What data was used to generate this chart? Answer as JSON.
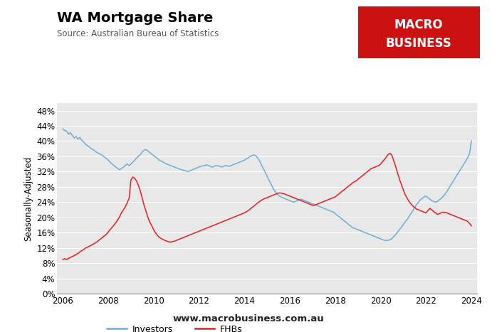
{
  "title": "WA Mortgage Share",
  "subtitle": "Source: Australian Bureau of Statistics",
  "ylabel": "Seasonally-Adjusted",
  "ylim": [
    0,
    0.5
  ],
  "yticks": [
    0.0,
    0.04,
    0.08,
    0.12,
    0.16,
    0.2,
    0.24,
    0.28,
    0.32,
    0.36,
    0.4,
    0.44,
    0.48
  ],
  "xlim": [
    2005.75,
    2024.25
  ],
  "xticks": [
    2006,
    2008,
    2010,
    2012,
    2014,
    2016,
    2018,
    2020,
    2022,
    2024
  ],
  "background_color": "#f2f2f2",
  "plot_bg_color": "#e8e8e8",
  "investors_color": "#6baed6",
  "fhbs_color": "#e81c1c",
  "legend_investors": "Investors",
  "legend_fhbs": "FHBs",
  "website": "www.macrobusiness.com.au",
  "investors": [
    [
      2006.0,
      0.432
    ],
    [
      2006.08,
      0.428
    ],
    [
      2006.17,
      0.426
    ],
    [
      2006.25,
      0.418
    ],
    [
      2006.33,
      0.422
    ],
    [
      2006.42,
      0.415
    ],
    [
      2006.5,
      0.408
    ],
    [
      2006.58,
      0.412
    ],
    [
      2006.67,
      0.405
    ],
    [
      2006.75,
      0.41
    ],
    [
      2006.83,
      0.402
    ],
    [
      2006.92,
      0.398
    ],
    [
      2007.0,
      0.392
    ],
    [
      2007.08,
      0.388
    ],
    [
      2007.17,
      0.385
    ],
    [
      2007.25,
      0.38
    ],
    [
      2007.33,
      0.378
    ],
    [
      2007.42,
      0.374
    ],
    [
      2007.5,
      0.37
    ],
    [
      2007.58,
      0.368
    ],
    [
      2007.67,
      0.365
    ],
    [
      2007.75,
      0.362
    ],
    [
      2007.83,
      0.358
    ],
    [
      2007.92,
      0.355
    ],
    [
      2008.0,
      0.35
    ],
    [
      2008.08,
      0.345
    ],
    [
      2008.17,
      0.34
    ],
    [
      2008.25,
      0.336
    ],
    [
      2008.33,
      0.332
    ],
    [
      2008.42,
      0.328
    ],
    [
      2008.5,
      0.325
    ],
    [
      2008.58,
      0.328
    ],
    [
      2008.67,
      0.332
    ],
    [
      2008.75,
      0.336
    ],
    [
      2008.83,
      0.34
    ],
    [
      2008.92,
      0.336
    ],
    [
      2009.0,
      0.34
    ],
    [
      2009.08,
      0.345
    ],
    [
      2009.17,
      0.35
    ],
    [
      2009.25,
      0.356
    ],
    [
      2009.33,
      0.36
    ],
    [
      2009.42,
      0.365
    ],
    [
      2009.5,
      0.372
    ],
    [
      2009.58,
      0.376
    ],
    [
      2009.67,
      0.378
    ],
    [
      2009.75,
      0.374
    ],
    [
      2009.83,
      0.37
    ],
    [
      2009.92,
      0.366
    ],
    [
      2010.0,
      0.362
    ],
    [
      2010.08,
      0.358
    ],
    [
      2010.17,
      0.355
    ],
    [
      2010.25,
      0.35
    ],
    [
      2010.33,
      0.348
    ],
    [
      2010.42,
      0.345
    ],
    [
      2010.5,
      0.342
    ],
    [
      2010.58,
      0.34
    ],
    [
      2010.67,
      0.338
    ],
    [
      2010.75,
      0.336
    ],
    [
      2010.83,
      0.334
    ],
    [
      2010.92,
      0.332
    ],
    [
      2011.0,
      0.33
    ],
    [
      2011.08,
      0.328
    ],
    [
      2011.17,
      0.326
    ],
    [
      2011.25,
      0.325
    ],
    [
      2011.33,
      0.323
    ],
    [
      2011.42,
      0.322
    ],
    [
      2011.5,
      0.32
    ],
    [
      2011.58,
      0.322
    ],
    [
      2011.67,
      0.324
    ],
    [
      2011.75,
      0.326
    ],
    [
      2011.83,
      0.328
    ],
    [
      2011.92,
      0.33
    ],
    [
      2012.0,
      0.332
    ],
    [
      2012.08,
      0.334
    ],
    [
      2012.17,
      0.335
    ],
    [
      2012.25,
      0.336
    ],
    [
      2012.33,
      0.338
    ],
    [
      2012.42,
      0.336
    ],
    [
      2012.5,
      0.334
    ],
    [
      2012.58,
      0.332
    ],
    [
      2012.67,
      0.334
    ],
    [
      2012.75,
      0.336
    ],
    [
      2012.83,
      0.335
    ],
    [
      2012.92,
      0.334
    ],
    [
      2013.0,
      0.332
    ],
    [
      2013.08,
      0.334
    ],
    [
      2013.17,
      0.336
    ],
    [
      2013.25,
      0.335
    ],
    [
      2013.33,
      0.334
    ],
    [
      2013.42,
      0.336
    ],
    [
      2013.5,
      0.338
    ],
    [
      2013.58,
      0.34
    ],
    [
      2013.67,
      0.342
    ],
    [
      2013.75,
      0.344
    ],
    [
      2013.83,
      0.346
    ],
    [
      2013.92,
      0.348
    ],
    [
      2014.0,
      0.35
    ],
    [
      2014.08,
      0.354
    ],
    [
      2014.17,
      0.356
    ],
    [
      2014.25,
      0.36
    ],
    [
      2014.33,
      0.362
    ],
    [
      2014.42,
      0.364
    ],
    [
      2014.5,
      0.362
    ],
    [
      2014.58,
      0.356
    ],
    [
      2014.67,
      0.348
    ],
    [
      2014.75,
      0.338
    ],
    [
      2014.83,
      0.328
    ],
    [
      2014.92,
      0.318
    ],
    [
      2015.0,
      0.308
    ],
    [
      2015.08,
      0.298
    ],
    [
      2015.17,
      0.288
    ],
    [
      2015.25,
      0.278
    ],
    [
      2015.33,
      0.27
    ],
    [
      2015.42,
      0.262
    ],
    [
      2015.5,
      0.258
    ],
    [
      2015.58,
      0.255
    ],
    [
      2015.67,
      0.252
    ],
    [
      2015.75,
      0.25
    ],
    [
      2015.83,
      0.248
    ],
    [
      2015.92,
      0.246
    ],
    [
      2016.0,
      0.244
    ],
    [
      2016.08,
      0.242
    ],
    [
      2016.17,
      0.24
    ],
    [
      2016.25,
      0.242
    ],
    [
      2016.33,
      0.244
    ],
    [
      2016.42,
      0.246
    ],
    [
      2016.5,
      0.248
    ],
    [
      2016.58,
      0.246
    ],
    [
      2016.67,
      0.244
    ],
    [
      2016.75,
      0.242
    ],
    [
      2016.83,
      0.24
    ],
    [
      2016.92,
      0.238
    ],
    [
      2017.0,
      0.236
    ],
    [
      2017.08,
      0.234
    ],
    [
      2017.17,
      0.232
    ],
    [
      2017.25,
      0.23
    ],
    [
      2017.33,
      0.228
    ],
    [
      2017.42,
      0.226
    ],
    [
      2017.5,
      0.224
    ],
    [
      2017.58,
      0.222
    ],
    [
      2017.67,
      0.22
    ],
    [
      2017.75,
      0.218
    ],
    [
      2017.83,
      0.216
    ],
    [
      2017.92,
      0.214
    ],
    [
      2018.0,
      0.21
    ],
    [
      2018.08,
      0.206
    ],
    [
      2018.17,
      0.202
    ],
    [
      2018.25,
      0.198
    ],
    [
      2018.33,
      0.194
    ],
    [
      2018.42,
      0.19
    ],
    [
      2018.5,
      0.186
    ],
    [
      2018.58,
      0.182
    ],
    [
      2018.67,
      0.178
    ],
    [
      2018.75,
      0.174
    ],
    [
      2018.83,
      0.172
    ],
    [
      2018.92,
      0.17
    ],
    [
      2019.0,
      0.168
    ],
    [
      2019.08,
      0.166
    ],
    [
      2019.17,
      0.164
    ],
    [
      2019.25,
      0.162
    ],
    [
      2019.33,
      0.16
    ],
    [
      2019.42,
      0.158
    ],
    [
      2019.5,
      0.156
    ],
    [
      2019.58,
      0.154
    ],
    [
      2019.67,
      0.152
    ],
    [
      2019.75,
      0.15
    ],
    [
      2019.83,
      0.148
    ],
    [
      2019.92,
      0.146
    ],
    [
      2020.0,
      0.144
    ],
    [
      2020.08,
      0.142
    ],
    [
      2020.17,
      0.14
    ],
    [
      2020.25,
      0.14
    ],
    [
      2020.33,
      0.14
    ],
    [
      2020.42,
      0.142
    ],
    [
      2020.5,
      0.145
    ],
    [
      2020.58,
      0.15
    ],
    [
      2020.67,
      0.156
    ],
    [
      2020.75,
      0.162
    ],
    [
      2020.83,
      0.168
    ],
    [
      2020.92,
      0.175
    ],
    [
      2021.0,
      0.182
    ],
    [
      2021.08,
      0.188
    ],
    [
      2021.17,
      0.195
    ],
    [
      2021.25,
      0.202
    ],
    [
      2021.33,
      0.21
    ],
    [
      2021.42,
      0.218
    ],
    [
      2021.5,
      0.226
    ],
    [
      2021.58,
      0.234
    ],
    [
      2021.67,
      0.24
    ],
    [
      2021.75,
      0.246
    ],
    [
      2021.83,
      0.25
    ],
    [
      2021.92,
      0.254
    ],
    [
      2022.0,
      0.256
    ],
    [
      2022.08,
      0.252
    ],
    [
      2022.17,
      0.248
    ],
    [
      2022.25,
      0.244
    ],
    [
      2022.33,
      0.242
    ],
    [
      2022.42,
      0.24
    ],
    [
      2022.5,
      0.242
    ],
    [
      2022.58,
      0.246
    ],
    [
      2022.67,
      0.25
    ],
    [
      2022.75,
      0.255
    ],
    [
      2022.83,
      0.26
    ],
    [
      2022.92,
      0.268
    ],
    [
      2023.0,
      0.276
    ],
    [
      2023.08,
      0.284
    ],
    [
      2023.17,
      0.292
    ],
    [
      2023.25,
      0.3
    ],
    [
      2023.33,
      0.308
    ],
    [
      2023.42,
      0.316
    ],
    [
      2023.5,
      0.324
    ],
    [
      2023.58,
      0.332
    ],
    [
      2023.67,
      0.34
    ],
    [
      2023.75,
      0.348
    ],
    [
      2023.83,
      0.356
    ],
    [
      2023.92,
      0.368
    ],
    [
      2024.0,
      0.4
    ]
  ],
  "fhbs": [
    [
      2006.0,
      0.09
    ],
    [
      2006.08,
      0.092
    ],
    [
      2006.17,
      0.09
    ],
    [
      2006.25,
      0.093
    ],
    [
      2006.33,
      0.095
    ],
    [
      2006.42,
      0.098
    ],
    [
      2006.5,
      0.1
    ],
    [
      2006.58,
      0.103
    ],
    [
      2006.67,
      0.106
    ],
    [
      2006.75,
      0.11
    ],
    [
      2006.83,
      0.113
    ],
    [
      2006.92,
      0.116
    ],
    [
      2007.0,
      0.12
    ],
    [
      2007.08,
      0.122
    ],
    [
      2007.17,
      0.125
    ],
    [
      2007.25,
      0.127
    ],
    [
      2007.33,
      0.13
    ],
    [
      2007.42,
      0.133
    ],
    [
      2007.5,
      0.136
    ],
    [
      2007.58,
      0.14
    ],
    [
      2007.67,
      0.144
    ],
    [
      2007.75,
      0.148
    ],
    [
      2007.83,
      0.152
    ],
    [
      2007.92,
      0.156
    ],
    [
      2008.0,
      0.162
    ],
    [
      2008.08,
      0.168
    ],
    [
      2008.17,
      0.174
    ],
    [
      2008.25,
      0.18
    ],
    [
      2008.33,
      0.186
    ],
    [
      2008.42,
      0.194
    ],
    [
      2008.5,
      0.202
    ],
    [
      2008.58,
      0.212
    ],
    [
      2008.67,
      0.22
    ],
    [
      2008.75,
      0.228
    ],
    [
      2008.83,
      0.238
    ],
    [
      2008.92,
      0.25
    ],
    [
      2009.0,
      0.298
    ],
    [
      2009.08,
      0.306
    ],
    [
      2009.17,
      0.302
    ],
    [
      2009.25,
      0.295
    ],
    [
      2009.33,
      0.284
    ],
    [
      2009.42,
      0.268
    ],
    [
      2009.5,
      0.25
    ],
    [
      2009.58,
      0.232
    ],
    [
      2009.67,
      0.215
    ],
    [
      2009.75,
      0.2
    ],
    [
      2009.83,
      0.188
    ],
    [
      2009.92,
      0.178
    ],
    [
      2010.0,
      0.168
    ],
    [
      2010.08,
      0.16
    ],
    [
      2010.17,
      0.153
    ],
    [
      2010.25,
      0.148
    ],
    [
      2010.33,
      0.145
    ],
    [
      2010.42,
      0.142
    ],
    [
      2010.5,
      0.14
    ],
    [
      2010.58,
      0.138
    ],
    [
      2010.67,
      0.136
    ],
    [
      2010.75,
      0.136
    ],
    [
      2010.83,
      0.137
    ],
    [
      2010.92,
      0.138
    ],
    [
      2011.0,
      0.14
    ],
    [
      2011.08,
      0.142
    ],
    [
      2011.17,
      0.144
    ],
    [
      2011.25,
      0.146
    ],
    [
      2011.33,
      0.148
    ],
    [
      2011.42,
      0.15
    ],
    [
      2011.5,
      0.152
    ],
    [
      2011.58,
      0.154
    ],
    [
      2011.67,
      0.156
    ],
    [
      2011.75,
      0.158
    ],
    [
      2011.83,
      0.16
    ],
    [
      2011.92,
      0.162
    ],
    [
      2012.0,
      0.164
    ],
    [
      2012.08,
      0.166
    ],
    [
      2012.17,
      0.168
    ],
    [
      2012.25,
      0.17
    ],
    [
      2012.33,
      0.172
    ],
    [
      2012.42,
      0.174
    ],
    [
      2012.5,
      0.176
    ],
    [
      2012.58,
      0.178
    ],
    [
      2012.67,
      0.18
    ],
    [
      2012.75,
      0.182
    ],
    [
      2012.83,
      0.184
    ],
    [
      2012.92,
      0.186
    ],
    [
      2013.0,
      0.188
    ],
    [
      2013.08,
      0.19
    ],
    [
      2013.17,
      0.192
    ],
    [
      2013.25,
      0.194
    ],
    [
      2013.33,
      0.196
    ],
    [
      2013.42,
      0.198
    ],
    [
      2013.5,
      0.2
    ],
    [
      2013.58,
      0.202
    ],
    [
      2013.67,
      0.204
    ],
    [
      2013.75,
      0.206
    ],
    [
      2013.83,
      0.208
    ],
    [
      2013.92,
      0.21
    ],
    [
      2014.0,
      0.212
    ],
    [
      2014.08,
      0.215
    ],
    [
      2014.17,
      0.218
    ],
    [
      2014.25,
      0.222
    ],
    [
      2014.33,
      0.226
    ],
    [
      2014.42,
      0.23
    ],
    [
      2014.5,
      0.234
    ],
    [
      2014.58,
      0.238
    ],
    [
      2014.67,
      0.242
    ],
    [
      2014.75,
      0.245
    ],
    [
      2014.83,
      0.248
    ],
    [
      2014.92,
      0.25
    ],
    [
      2015.0,
      0.252
    ],
    [
      2015.08,
      0.254
    ],
    [
      2015.17,
      0.256
    ],
    [
      2015.25,
      0.258
    ],
    [
      2015.33,
      0.26
    ],
    [
      2015.42,
      0.262
    ],
    [
      2015.5,
      0.264
    ],
    [
      2015.58,
      0.264
    ],
    [
      2015.67,
      0.263
    ],
    [
      2015.75,
      0.262
    ],
    [
      2015.83,
      0.26
    ],
    [
      2015.92,
      0.258
    ],
    [
      2016.0,
      0.256
    ],
    [
      2016.08,
      0.254
    ],
    [
      2016.17,
      0.252
    ],
    [
      2016.25,
      0.25
    ],
    [
      2016.33,
      0.248
    ],
    [
      2016.42,
      0.246
    ],
    [
      2016.5,
      0.244
    ],
    [
      2016.58,
      0.242
    ],
    [
      2016.67,
      0.24
    ],
    [
      2016.75,
      0.238
    ],
    [
      2016.83,
      0.236
    ],
    [
      2016.92,
      0.234
    ],
    [
      2017.0,
      0.232
    ],
    [
      2017.08,
      0.232
    ],
    [
      2017.17,
      0.234
    ],
    [
      2017.25,
      0.236
    ],
    [
      2017.33,
      0.238
    ],
    [
      2017.42,
      0.24
    ],
    [
      2017.5,
      0.242
    ],
    [
      2017.58,
      0.244
    ],
    [
      2017.67,
      0.246
    ],
    [
      2017.75,
      0.248
    ],
    [
      2017.83,
      0.25
    ],
    [
      2017.92,
      0.252
    ],
    [
      2018.0,
      0.254
    ],
    [
      2018.08,
      0.258
    ],
    [
      2018.17,
      0.262
    ],
    [
      2018.25,
      0.266
    ],
    [
      2018.33,
      0.27
    ],
    [
      2018.42,
      0.274
    ],
    [
      2018.5,
      0.278
    ],
    [
      2018.58,
      0.282
    ],
    [
      2018.67,
      0.286
    ],
    [
      2018.75,
      0.29
    ],
    [
      2018.83,
      0.293
    ],
    [
      2018.92,
      0.296
    ],
    [
      2019.0,
      0.3
    ],
    [
      2019.08,
      0.304
    ],
    [
      2019.17,
      0.308
    ],
    [
      2019.25,
      0.312
    ],
    [
      2019.33,
      0.316
    ],
    [
      2019.42,
      0.32
    ],
    [
      2019.5,
      0.324
    ],
    [
      2019.58,
      0.328
    ],
    [
      2019.67,
      0.33
    ],
    [
      2019.75,
      0.332
    ],
    [
      2019.83,
      0.334
    ],
    [
      2019.92,
      0.336
    ],
    [
      2020.0,
      0.34
    ],
    [
      2020.08,
      0.346
    ],
    [
      2020.17,
      0.352
    ],
    [
      2020.25,
      0.358
    ],
    [
      2020.33,
      0.365
    ],
    [
      2020.42,
      0.368
    ],
    [
      2020.5,
      0.362
    ],
    [
      2020.58,
      0.348
    ],
    [
      2020.67,
      0.332
    ],
    [
      2020.75,
      0.316
    ],
    [
      2020.83,
      0.3
    ],
    [
      2020.92,
      0.285
    ],
    [
      2021.0,
      0.272
    ],
    [
      2021.08,
      0.26
    ],
    [
      2021.17,
      0.25
    ],
    [
      2021.25,
      0.242
    ],
    [
      2021.33,
      0.236
    ],
    [
      2021.42,
      0.23
    ],
    [
      2021.5,
      0.226
    ],
    [
      2021.58,
      0.222
    ],
    [
      2021.67,
      0.22
    ],
    [
      2021.75,
      0.218
    ],
    [
      2021.83,
      0.216
    ],
    [
      2021.92,
      0.214
    ],
    [
      2022.0,
      0.212
    ],
    [
      2022.08,
      0.218
    ],
    [
      2022.17,
      0.224
    ],
    [
      2022.25,
      0.22
    ],
    [
      2022.33,
      0.216
    ],
    [
      2022.42,
      0.212
    ],
    [
      2022.5,
      0.208
    ],
    [
      2022.58,
      0.21
    ],
    [
      2022.67,
      0.212
    ],
    [
      2022.75,
      0.214
    ],
    [
      2022.83,
      0.213
    ],
    [
      2022.92,
      0.212
    ],
    [
      2023.0,
      0.21
    ],
    [
      2023.08,
      0.208
    ],
    [
      2023.17,
      0.206
    ],
    [
      2023.25,
      0.204
    ],
    [
      2023.33,
      0.202
    ],
    [
      2023.42,
      0.2
    ],
    [
      2023.5,
      0.198
    ],
    [
      2023.58,
      0.196
    ],
    [
      2023.67,
      0.194
    ],
    [
      2023.75,
      0.192
    ],
    [
      2023.83,
      0.19
    ],
    [
      2023.92,
      0.184
    ],
    [
      2024.0,
      0.178
    ]
  ]
}
